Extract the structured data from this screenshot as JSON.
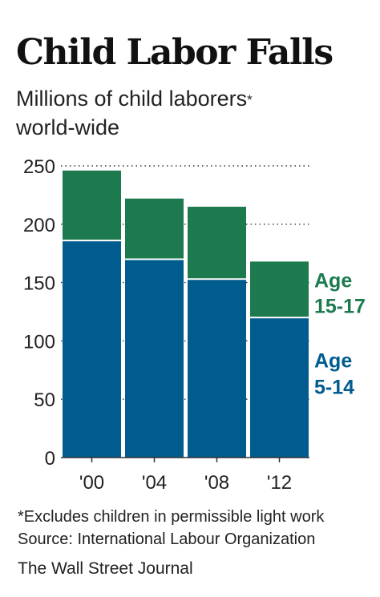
{
  "title": "Child Labor Falls",
  "subtitle_line1": "Millions of child laborers",
  "subtitle_asterisk": "*",
  "subtitle_line2": "world-wide",
  "footnote": "*Excludes children in permissible light work",
  "source": "Source: International Labour Organization",
  "credit": "The Wall Street Journal",
  "colors": {
    "age_5_14": "#005b8f",
    "age_15_17": "#1c7a4e",
    "grid": "#333333"
  },
  "chart_data": {
    "type": "bar",
    "stacked": true,
    "categories": [
      "'00",
      "'04",
      "'08",
      "'12"
    ],
    "series": [
      {
        "name": "Age 5-14",
        "label_lines": [
          "Age",
          "5-14"
        ],
        "values": [
          186,
          170,
          153,
          120
        ]
      },
      {
        "name": "Age 15-17",
        "label_lines": [
          "Age",
          "15-17"
        ],
        "values": [
          60,
          52,
          62,
          48
        ]
      }
    ],
    "totals": [
      246,
      222,
      215,
      168
    ],
    "yticks": [
      0,
      50,
      100,
      150,
      200,
      250
    ],
    "ylim": [
      0,
      250
    ],
    "grid": true,
    "legend": "right, inline labels"
  }
}
